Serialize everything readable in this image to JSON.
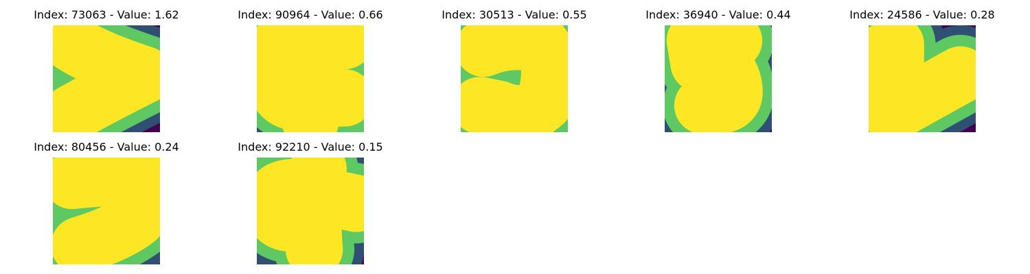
{
  "colors": {
    "background": "#440154",
    "stroke_edge": "#21918c",
    "stroke_mid": "#5ec962",
    "stroke_core": "#fde725"
  },
  "panels": [
    {
      "title": "Index: 73063 - Value: 1.62",
      "glyph": "greater-than-stroke"
    },
    {
      "title": "Index: 90964 - Value: 0.66",
      "glyph": "crossed-loop-stroke"
    },
    {
      "title": "Index: 30513 - Value: 0.55",
      "glyph": "hook-stroke"
    },
    {
      "title": "Index: 36940 - Value: 0.44",
      "glyph": "five-like-stroke"
    },
    {
      "title": "Index: 24586 - Value: 0.28",
      "glyph": "check-like-stroke"
    },
    {
      "title": "Index: 80456 - Value: 0.24",
      "glyph": "seven-like-stroke"
    },
    {
      "title": "Index: 92210 - Value: 0.15",
      "glyph": "loop-cross-stroke"
    }
  ]
}
